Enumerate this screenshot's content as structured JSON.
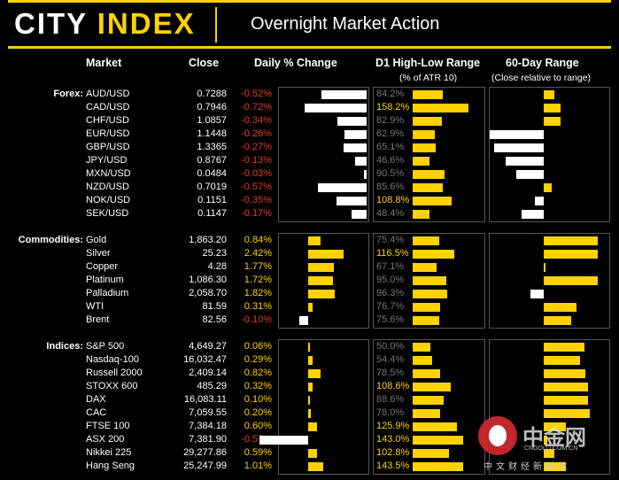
{
  "header": {
    "brand_city": "CITY",
    "brand_index": "INDEX",
    "title": "Overnight Market Action"
  },
  "columns": {
    "market": "Market",
    "close": "Close",
    "daily": "Daily % Change",
    "hl": "D1 High-Low Range",
    "hl_sub": "(% of ATR 10)",
    "r60": "60-Day Range",
    "r60_sub": "(Close relative to range)"
  },
  "colors": {
    "accent": "#ffd200",
    "negative_bar": "#ffffff",
    "negative_text": "#e03a2e",
    "positive": "#ffd200",
    "panel_border": "#555555"
  },
  "chart_data": {
    "type": "bar",
    "sections": [
      {
        "label": "Forex:",
        "rows": [
          {
            "market": "AUD/USD",
            "close": "0.7288",
            "daily": "-0.52%",
            "daily_v": -0.52,
            "hl": "84.2%",
            "hl_v": 84.2,
            "r60_v": 0.1
          },
          {
            "market": "CAD/USD",
            "close": "0.7946",
            "daily": "-0.72%",
            "daily_v": -0.72,
            "hl": "158.2%",
            "hl_v": 158.2,
            "r60_v": 0.15
          },
          {
            "market": "CHF/USD",
            "close": "1.0857",
            "daily": "-0.34%",
            "daily_v": -0.34,
            "hl": "82.9%",
            "hl_v": 82.9,
            "r60_v": 0.15
          },
          {
            "market": "EUR/USD",
            "close": "1.1448",
            "daily": "-0.26%",
            "daily_v": -0.26,
            "hl": "62.9%",
            "hl_v": 62.9,
            "r60_v": -0.5
          },
          {
            "market": "GBP/USD",
            "close": "1.3365",
            "daily": "-0.27%",
            "daily_v": -0.27,
            "hl": "65.1%",
            "hl_v": 65.1,
            "r60_v": -0.45
          },
          {
            "market": "JPY/USD",
            "close": "0.8767",
            "daily": "-0.13%",
            "daily_v": -0.13,
            "hl": "46.6%",
            "hl_v": 46.6,
            "r60_v": -0.35
          },
          {
            "market": "MXN/USD",
            "close": "0.0484",
            "daily": "-0.03%",
            "daily_v": -0.03,
            "hl": "90.5%",
            "hl_v": 90.5,
            "r60_v": -0.25
          },
          {
            "market": "NZD/USD",
            "close": "0.7019",
            "daily": "-0.57%",
            "daily_v": -0.57,
            "hl": "85.6%",
            "hl_v": 85.6,
            "r60_v": 0.07
          },
          {
            "market": "NOK/USD",
            "close": "0.1151",
            "daily": "-0.35%",
            "daily_v": -0.35,
            "hl": "108.8%",
            "hl_v": 108.8,
            "r60_v": -0.08
          },
          {
            "market": "SEK/USD",
            "close": "0.1147",
            "daily": "-0.17%",
            "daily_v": -0.17,
            "hl": "48.4%",
            "hl_v": 48.4,
            "r60_v": -0.2
          }
        ]
      },
      {
        "label": "Commodities:",
        "rows": [
          {
            "market": "Gold",
            "close": "1,863.20",
            "daily": "0.84%",
            "daily_v": 0.84,
            "hl": "75.4%",
            "hl_v": 75.4,
            "r60_v": 0.5
          },
          {
            "market": "Silver",
            "close": "25.23",
            "daily": "2.42%",
            "daily_v": 2.42,
            "hl": "116.5%",
            "hl_v": 116.5,
            "r60_v": 0.5
          },
          {
            "market": "Copper",
            "close": "4.28",
            "daily": "1.77%",
            "daily_v": 1.77,
            "hl": "67.1%",
            "hl_v": 67.1,
            "r60_v": 0.01
          },
          {
            "market": "Platinum",
            "close": "1,086.30",
            "daily": "1.72%",
            "daily_v": 1.72,
            "hl": "95.0%",
            "hl_v": 95.0,
            "r60_v": 0.5
          },
          {
            "market": "Palladium",
            "close": "2,058.70",
            "daily": "1.82%",
            "daily_v": 1.82,
            "hl": "96.3%",
            "hl_v": 96.3,
            "r60_v": -0.12
          },
          {
            "market": "WTI",
            "close": "81.59",
            "daily": "0.31%",
            "daily_v": 0.31,
            "hl": "76.7%",
            "hl_v": 76.7,
            "r60_v": 0.3
          },
          {
            "market": "Brent",
            "close": "82.56",
            "daily": "-0.10%",
            "daily_v": -0.1,
            "hl": "75.6%",
            "hl_v": 75.6,
            "r60_v": 0.25
          }
        ]
      },
      {
        "label": "Indices:",
        "rows": [
          {
            "market": "S&P 500",
            "close": "4,649.27",
            "daily": "0.06%",
            "daily_v": 0.06,
            "hl": "50.0%",
            "hl_v": 50.0,
            "r60_v": 0.37
          },
          {
            "market": "Nasdaq-100",
            "close": "16,032.47",
            "daily": "0.29%",
            "daily_v": 0.29,
            "hl": "54.4%",
            "hl_v": 54.4,
            "r60_v": 0.33
          },
          {
            "market": "Russell 2000",
            "close": "2,409.14",
            "daily": "0.82%",
            "daily_v": 0.82,
            "hl": "78.5%",
            "hl_v": 78.5,
            "r60_v": 0.38
          },
          {
            "market": "STOXX 600",
            "close": "485.29",
            "daily": "0.32%",
            "daily_v": 0.32,
            "hl": "108.6%",
            "hl_v": 108.6,
            "r60_v": 0.4
          },
          {
            "market": "DAX",
            "close": "16,083.11",
            "daily": "0.10%",
            "daily_v": 0.1,
            "hl": "88.6%",
            "hl_v": 88.6,
            "r60_v": 0.4
          },
          {
            "market": "CAC",
            "close": "7,059.55",
            "daily": "0.20%",
            "daily_v": 0.2,
            "hl": "78.0%",
            "hl_v": 78.0,
            "r60_v": 0.42
          },
          {
            "market": "FTSE 100",
            "close": "7,384.18",
            "daily": "0.60%",
            "daily_v": 0.6,
            "hl": "125.9%",
            "hl_v": 125.9,
            "r60_v": 0.2
          },
          {
            "market": "ASX 200",
            "close": "7,381.90",
            "daily": "-0.57%",
            "daily_v": -0.57,
            "hl": "143.0%",
            "hl_v": 143.0,
            "r60_v": 0.03
          },
          {
            "market": "Nikkei 225",
            "close": "29,277.86",
            "daily": "0.59%",
            "daily_v": 0.59,
            "hl": "102.8%",
            "hl_v": 102.8,
            "r60_v": 0.1
          },
          {
            "market": "Hang Seng",
            "close": "25,247.99",
            "daily": "1.01%",
            "daily_v": 1.01,
            "hl": "143.5%",
            "hl_v": 143.5,
            "r60_v": 0.2
          }
        ]
      }
    ],
    "daily_range": [
      -0.72,
      2.42
    ],
    "hl_range": [
      0,
      160
    ],
    "r60_range": [
      -0.5,
      0.5
    ]
  },
  "watermark": {
    "title": "中金网",
    "domain": "CNGOLD.COM.CN",
    "sub": "中文财经新媒体"
  }
}
